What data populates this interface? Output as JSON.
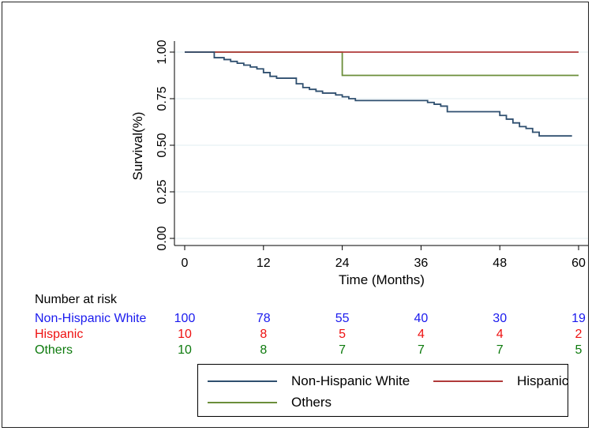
{
  "chart_data": {
    "type": "line",
    "title": "",
    "xlabel": "Time (Months)",
    "ylabel": "Survival(%)",
    "xlim": [
      0,
      60
    ],
    "ylim": [
      0,
      1
    ],
    "xticks": [
      "0",
      "12",
      "24",
      "36",
      "48",
      "60"
    ],
    "yticks": [
      "0.00",
      "0.25",
      "0.50",
      "0.75",
      "1.00"
    ],
    "grid": true,
    "legend_position": "bottom",
    "series": [
      {
        "name": "Non-Hispanic White",
        "color": "#2f4f6f",
        "step": true,
        "x": [
          0,
          4.5,
          6,
          7,
          8,
          9,
          10,
          11,
          12,
          13,
          14,
          17,
          18,
          19,
          20,
          21,
          22,
          23,
          24,
          25,
          26,
          37,
          38,
          39,
          40,
          48,
          49,
          50,
          51,
          52,
          53,
          54,
          59
        ],
        "y": [
          1.0,
          0.97,
          0.96,
          0.95,
          0.94,
          0.93,
          0.92,
          0.91,
          0.89,
          0.87,
          0.86,
          0.83,
          0.81,
          0.8,
          0.79,
          0.78,
          0.78,
          0.77,
          0.76,
          0.75,
          0.74,
          0.73,
          0.72,
          0.71,
          0.68,
          0.66,
          0.64,
          0.62,
          0.6,
          0.59,
          0.57,
          0.55,
          0.55
        ]
      },
      {
        "name": "Hispanic",
        "color": "#b03a3a",
        "step": true,
        "x": [
          0,
          60
        ],
        "y": [
          1.0,
          1.0
        ]
      },
      {
        "name": "Others",
        "color": "#6b8e3a",
        "step": true,
        "x": [
          0,
          24,
          60
        ],
        "y": [
          1.0,
          0.875,
          0.875
        ]
      }
    ]
  },
  "risk_table": {
    "heading": "Number at risk",
    "rows": [
      {
        "label": "Non-Hispanic White",
        "color": "#1a1aee",
        "values": [
          "100",
          "78",
          "55",
          "40",
          "30",
          "19"
        ]
      },
      {
        "label": "Hispanic",
        "color": "#ee1111",
        "values": [
          "10",
          "8",
          "5",
          "4",
          "4",
          "2"
        ]
      },
      {
        "label": "Others",
        "color": "#0d7a0d",
        "values": [
          "10",
          "8",
          "7",
          "7",
          "7",
          "5"
        ]
      }
    ]
  },
  "legend": {
    "items": [
      "Non-Hispanic White",
      "Hispanic",
      "Others"
    ]
  }
}
